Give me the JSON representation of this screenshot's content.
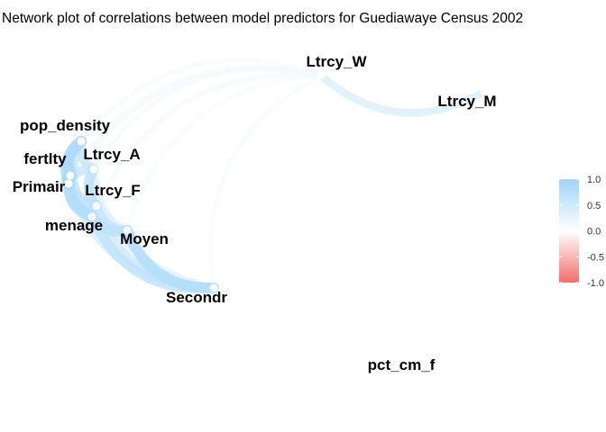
{
  "chart_data": {
    "type": "network",
    "title": "Network plot of correlations between model predictors for Guediawaye Census 2002",
    "nodes": [
      {
        "id": "pop_density",
        "label": "pop_density"
      },
      {
        "id": "fertlty",
        "label": "fertlty"
      },
      {
        "id": "Ltrcy_A",
        "label": "Ltrcy_A"
      },
      {
        "id": "Primair",
        "label": "Primair"
      },
      {
        "id": "Ltrcy_F",
        "label": "Ltrcy_F"
      },
      {
        "id": "menage",
        "label": "menage"
      },
      {
        "id": "Moyen",
        "label": "Moyen"
      },
      {
        "id": "Secondr",
        "label": "Secondr"
      },
      {
        "id": "Ltrcy_W",
        "label": "Ltrcy_W"
      },
      {
        "id": "Ltrcy_M",
        "label": "Ltrcy_M"
      },
      {
        "id": "pct_cm_f",
        "label": "pct_cm_f"
      }
    ],
    "edges": [
      {
        "from": "Ltrcy_W",
        "to": "Ltrcy_M",
        "r": 0.45
      },
      {
        "from": "Ltrcy_W",
        "to": "pop_density",
        "r": 0.15
      },
      {
        "from": "Ltrcy_W",
        "to": "fertlty",
        "r": 0.15
      },
      {
        "from": "Ltrcy_W",
        "to": "Ltrcy_A",
        "r": 0.15
      },
      {
        "from": "Ltrcy_W",
        "to": "Primair",
        "r": 0.12
      },
      {
        "from": "Ltrcy_W",
        "to": "Ltrcy_F",
        "r": 0.12
      },
      {
        "from": "Ltrcy_W",
        "to": "menage",
        "r": 0.1
      },
      {
        "from": "Ltrcy_W",
        "to": "Moyen",
        "r": 0.1
      },
      {
        "from": "Ltrcy_W",
        "to": "Secondr",
        "r": 0.12
      },
      {
        "from": "pop_density",
        "to": "fertlty",
        "r": 0.85
      },
      {
        "from": "pop_density",
        "to": "Primair",
        "r": 0.8
      },
      {
        "from": "pop_density",
        "to": "Ltrcy_A",
        "r": 0.6
      },
      {
        "from": "pop_density",
        "to": "menage",
        "r": 0.6
      },
      {
        "from": "pop_density",
        "to": "Secondr",
        "r": 0.35
      },
      {
        "from": "fertlty",
        "to": "Primair",
        "r": 0.9
      },
      {
        "from": "fertlty",
        "to": "menage",
        "r": 0.75
      },
      {
        "from": "fertlty",
        "to": "Ltrcy_F",
        "r": 0.65
      },
      {
        "from": "fertlty",
        "to": "Secondr",
        "r": 0.35
      },
      {
        "from": "Ltrcy_A",
        "to": "Ltrcy_F",
        "r": 0.7
      },
      {
        "from": "Ltrcy_A",
        "to": "Primair",
        "r": 0.6
      },
      {
        "from": "Ltrcy_A",
        "to": "Moyen",
        "r": 0.4
      },
      {
        "from": "Ltrcy_A",
        "to": "Secondr",
        "r": 0.3
      },
      {
        "from": "Primair",
        "to": "menage",
        "r": 0.8
      },
      {
        "from": "Primair",
        "to": "Ltrcy_F",
        "r": 0.6
      },
      {
        "from": "Primair",
        "to": "Secondr",
        "r": 0.5
      },
      {
        "from": "Primair",
        "to": "Moyen",
        "r": 0.55
      },
      {
        "from": "Ltrcy_F",
        "to": "menage",
        "r": 0.7
      },
      {
        "from": "Ltrcy_F",
        "to": "Moyen",
        "r": 0.6
      },
      {
        "from": "Ltrcy_F",
        "to": "Secondr",
        "r": 0.55
      },
      {
        "from": "menage",
        "to": "Moyen",
        "r": 0.7
      },
      {
        "from": "menage",
        "to": "Secondr",
        "r": 0.65
      },
      {
        "from": "Moyen",
        "to": "Secondr",
        "r": 0.8
      }
    ],
    "legend": {
      "placement": "right",
      "range": [
        -1,
        1
      ],
      "ticks": [
        "1.0",
        "0.5",
        "0.0",
        "-0.5",
        "-1.0"
      ],
      "colors": {
        "high": "#9fd4f8",
        "mid": "#ffffff",
        "low": "#f26d6d"
      }
    },
    "node_color": "#ffffff"
  }
}
